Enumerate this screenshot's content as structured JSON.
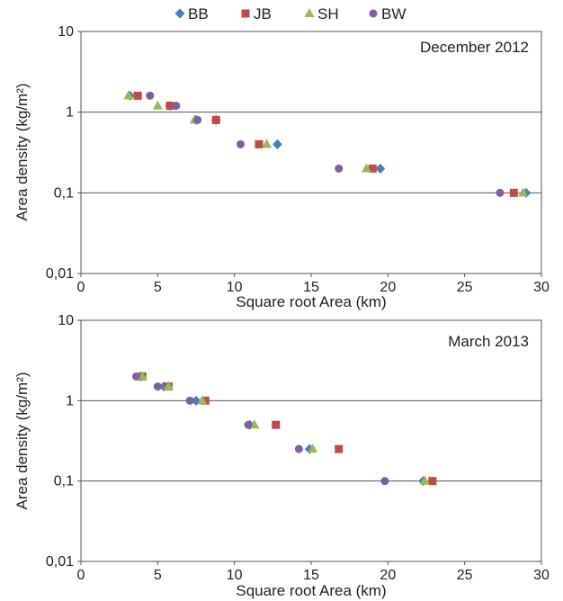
{
  "chart_data": [
    {
      "type": "scatter",
      "panel_label": "December 2012",
      "xlabel": "Square root Area (km)",
      "ylabel": "Area density (kg/m²)",
      "xlim": [
        0,
        30
      ],
      "ylim": [
        0.01,
        10
      ],
      "yscale": "log",
      "x_ticks": [
        "0",
        "5",
        "10",
        "15",
        "20",
        "25",
        "30"
      ],
      "y_ticks": [
        "0,01",
        "0,1",
        "1",
        "10"
      ],
      "grid_y": [
        0.1,
        1
      ],
      "series": [
        {
          "name": "BB",
          "color": "#4a7ebb",
          "marker": "diamond",
          "points": [
            {
              "x": 3.2,
              "y": 1.6
            },
            {
              "x": 5.8,
              "y": 1.2
            },
            {
              "x": 7.5,
              "y": 0.8
            },
            {
              "x": 8.8,
              "y": 0.8
            },
            {
              "x": 12.8,
              "y": 0.4
            },
            {
              "x": 19.5,
              "y": 0.2
            },
            {
              "x": 29.0,
              "y": 0.1
            }
          ]
        },
        {
          "name": "JB",
          "color": "#be4b48",
          "marker": "square",
          "points": [
            {
              "x": 3.7,
              "y": 1.6
            },
            {
              "x": 5.8,
              "y": 1.2
            },
            {
              "x": 8.8,
              "y": 0.8
            },
            {
              "x": 11.6,
              "y": 0.4
            },
            {
              "x": 19.0,
              "y": 0.2
            },
            {
              "x": 28.2,
              "y": 0.1
            }
          ]
        },
        {
          "name": "SH",
          "color": "#98b954",
          "marker": "triangle",
          "points": [
            {
              "x": 3.1,
              "y": 1.6
            },
            {
              "x": 5.0,
              "y": 1.2
            },
            {
              "x": 7.4,
              "y": 0.8
            },
            {
              "x": 12.1,
              "y": 0.4
            },
            {
              "x": 18.6,
              "y": 0.2
            },
            {
              "x": 28.8,
              "y": 0.1
            }
          ]
        },
        {
          "name": "BW",
          "color": "#7d60a0",
          "marker": "circle",
          "points": [
            {
              "x": 4.5,
              "y": 1.6
            },
            {
              "x": 6.2,
              "y": 1.2
            },
            {
              "x": 7.6,
              "y": 0.8
            },
            {
              "x": 10.4,
              "y": 0.4
            },
            {
              "x": 16.8,
              "y": 0.2
            },
            {
              "x": 27.3,
              "y": 0.1
            }
          ]
        }
      ]
    },
    {
      "type": "scatter",
      "panel_label": "March 2013",
      "xlabel": "Square root Area (km)",
      "ylabel": "Area density (kg/m²)",
      "xlim": [
        0,
        30
      ],
      "ylim": [
        0.01,
        10
      ],
      "yscale": "log",
      "x_ticks": [
        "0",
        "5",
        "10",
        "15",
        "20",
        "25",
        "30"
      ],
      "y_ticks": [
        "0,01",
        "0,1",
        "1",
        "10"
      ],
      "grid_y": [
        0.1,
        1
      ],
      "series": [
        {
          "name": "BB",
          "color": "#4a7ebb",
          "marker": "diamond",
          "points": [
            {
              "x": 3.9,
              "y": 2.0
            },
            {
              "x": 5.4,
              "y": 1.5
            },
            {
              "x": 7.5,
              "y": 1.0
            },
            {
              "x": 11.0,
              "y": 0.5
            },
            {
              "x": 14.9,
              "y": 0.25
            },
            {
              "x": 22.3,
              "y": 0.1
            }
          ]
        },
        {
          "name": "JB",
          "color": "#be4b48",
          "marker": "square",
          "points": [
            {
              "x": 4.0,
              "y": 2.0
            },
            {
              "x": 5.7,
              "y": 1.5
            },
            {
              "x": 8.1,
              "y": 1.0
            },
            {
              "x": 12.7,
              "y": 0.5
            },
            {
              "x": 16.8,
              "y": 0.25
            },
            {
              "x": 22.9,
              "y": 0.1
            }
          ]
        },
        {
          "name": "SH",
          "color": "#98b954",
          "marker": "triangle",
          "points": [
            {
              "x": 4.0,
              "y": 2.0
            },
            {
              "x": 5.7,
              "y": 1.5
            },
            {
              "x": 7.9,
              "y": 1.0
            },
            {
              "x": 11.3,
              "y": 0.5
            },
            {
              "x": 15.1,
              "y": 0.25
            },
            {
              "x": 22.4,
              "y": 0.1
            }
          ]
        },
        {
          "name": "BW",
          "color": "#7d60a0",
          "marker": "circle",
          "points": [
            {
              "x": 3.6,
              "y": 2.0
            },
            {
              "x": 5.0,
              "y": 1.5
            },
            {
              "x": 7.1,
              "y": 1.0
            },
            {
              "x": 10.9,
              "y": 0.5
            },
            {
              "x": 14.2,
              "y": 0.25
            },
            {
              "x": 19.8,
              "y": 0.1
            }
          ]
        }
      ]
    }
  ]
}
